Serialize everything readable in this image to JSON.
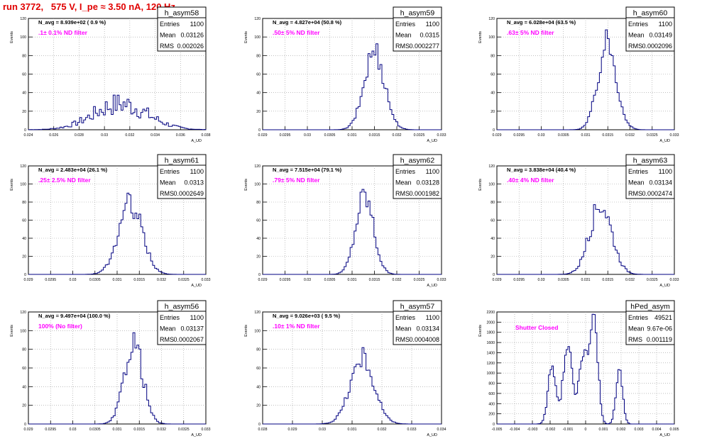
{
  "page": {
    "title": "run 3772,   575 V, I_pe ≈ 3.50 nA, 120 Hz"
  },
  "style": {
    "hist_color": "#000080",
    "note_color": "#ff00ff",
    "title_color": "#e00000"
  },
  "chart_data": [
    {
      "type": "histogram",
      "name": "h_asym58",
      "navg": "N_avg = 8.939e+02 ( 0.9 %)",
      "note": ".1± 0.1% ND filter",
      "stats": {
        "Entries": "1100",
        "Mean": "0.03126",
        "RMS": "0.002026"
      },
      "ylabel": "Events",
      "xlabel": "A_UD",
      "xlim": [
        0.024,
        0.038
      ],
      "ylim": [
        0,
        120
      ],
      "xticks": [
        "0.024",
        "0.026",
        "0.028",
        "0.03",
        "0.032",
        "0.034",
        "0.036",
        "0.038"
      ],
      "yticks": [
        "0",
        "20",
        "40",
        "60",
        "80",
        "100",
        "120"
      ],
      "mean": 0.03126,
      "rms": 0.002026,
      "peak": 37,
      "shape": "broad"
    },
    {
      "type": "histogram",
      "name": "h_asym59",
      "navg": "N_avg = 4.827e+04 (50.8 %)",
      "note": ".50± 5% ND filter",
      "stats": {
        "Entries": "1100",
        "Mean": "0.0315",
        "RMS": "0.0002277"
      },
      "ylabel": "Events",
      "xlabel": "A_UD",
      "xlim": [
        0.029,
        0.033
      ],
      "ylim": [
        0,
        120
      ],
      "xticks": [
        "0.029",
        "0.0295",
        "0.03",
        "0.0305",
        "0.031",
        "0.0315",
        "0.032",
        "0.0325",
        "0.033"
      ],
      "yticks": [
        "0",
        "20",
        "40",
        "60",
        "80",
        "100",
        "120"
      ],
      "mean": 0.0315,
      "rms": 0.0002277,
      "peak": 85,
      "shape": "gauss"
    },
    {
      "type": "histogram",
      "name": "h_asym60",
      "navg": "N_avg = 6.028e+04 (63.5 %)",
      "note": ".63± 5% ND filter",
      "stats": {
        "Entries": "1100",
        "Mean": "0.03149",
        "RMS": "0.0002096"
      },
      "ylabel": "Events",
      "xlabel": "A_UD",
      "xlim": [
        0.029,
        0.033
      ],
      "ylim": [
        0,
        120
      ],
      "xticks": [
        "0.029",
        "0.0295",
        "0.03",
        "0.0305",
        "0.031",
        "0.0315",
        "0.032",
        "0.0325",
        "0.033"
      ],
      "yticks": [
        "0",
        "20",
        "40",
        "60",
        "80",
        "100",
        "120"
      ],
      "mean": 0.03149,
      "rms": 0.0002096,
      "peak": 93,
      "shape": "gauss"
    },
    {
      "type": "histogram",
      "name": "h_asym61",
      "navg": "N_avg = 2.483e+04 (26.1 %)",
      "note": ".25± 2.5% ND filter",
      "stats": {
        "Entries": "1100",
        "Mean": "0.0313",
        "RMS": "0.0002649"
      },
      "ylabel": "Events",
      "xlabel": "A_UD",
      "xlim": [
        0.029,
        0.033
      ],
      "ylim": [
        0,
        120
      ],
      "xticks": [
        "0.029",
        "0.0295",
        "0.03",
        "0.0305",
        "0.031",
        "0.0315",
        "0.032",
        "0.0325",
        "0.033"
      ],
      "yticks": [
        "0",
        "20",
        "40",
        "60",
        "80",
        "100",
        "120"
      ],
      "mean": 0.0313,
      "rms": 0.0002649,
      "peak": 78,
      "shape": "gauss"
    },
    {
      "type": "histogram",
      "name": "h_asym62",
      "navg": "N_avg = 7.515e+04 (79.1 %)",
      "note": ".79± 5% ND filter",
      "stats": {
        "Entries": "1100",
        "Mean": "0.03128",
        "RMS": "0.0001982"
      },
      "ylabel": "Events",
      "xlabel": "A_UD",
      "xlim": [
        0.029,
        0.033
      ],
      "ylim": [
        0,
        120
      ],
      "xticks": [
        "0.029",
        "0.0295",
        "0.03",
        "0.0305",
        "0.031",
        "0.0315",
        "0.032",
        "0.0325",
        "0.033"
      ],
      "yticks": [
        "0",
        "20",
        "40",
        "60",
        "80",
        "100",
        "120"
      ],
      "mean": 0.03128,
      "rms": 0.0001982,
      "peak": 88,
      "shape": "gauss"
    },
    {
      "type": "histogram",
      "name": "h_asym63",
      "navg": "N_avg = 3.838e+04 (40.4 %)",
      "note": ".40± 4% ND filter",
      "stats": {
        "Entries": "1100",
        "Mean": "0.03134",
        "RMS": "0.0002474"
      },
      "ylabel": "Events",
      "xlabel": "A_UD",
      "xlim": [
        0.029,
        0.033
      ],
      "ylim": [
        0,
        120
      ],
      "xticks": [
        "0.029",
        "0.0295",
        "0.03",
        "0.0305",
        "0.031",
        "0.0315",
        "0.032",
        "0.0325",
        "0.033"
      ],
      "yticks": [
        "0",
        "20",
        "40",
        "60",
        "80",
        "100",
        "120"
      ],
      "mean": 0.03134,
      "rms": 0.0002474,
      "peak": 78,
      "shape": "gauss"
    },
    {
      "type": "histogram",
      "name": "h_asym56",
      "navg": "N_avg = 9.497e+04 (100.0 %)",
      "note": "100% (No filter)",
      "stats": {
        "Entries": "1100",
        "Mean": "0.03137",
        "RMS": "0.0002067"
      },
      "ylabel": "Events",
      "xlabel": "A_UD",
      "xlim": [
        0.029,
        0.033
      ],
      "ylim": [
        0,
        120
      ],
      "xticks": [
        "0.029",
        "0.0295",
        "0.03",
        "0.0305",
        "0.031",
        "0.0315",
        "0.032",
        "0.0325",
        "0.033"
      ],
      "yticks": [
        "0",
        "20",
        "40",
        "60",
        "80",
        "100",
        "120"
      ],
      "mean": 0.03137,
      "rms": 0.0002067,
      "peak": 88,
      "shape": "gauss"
    },
    {
      "type": "histogram",
      "name": "h_asym57",
      "navg": "N_avg = 9.026e+03 ( 9.5 %)",
      "note": ".10± 1% ND filter",
      "stats": {
        "Entries": "1100",
        "Mean": "0.03134",
        "RMS": "0.0004008"
      },
      "ylabel": "Events",
      "xlabel": "A_UD",
      "xlim": [
        0.028,
        0.034
      ],
      "ylim": [
        0,
        120
      ],
      "xticks": [
        "0.028",
        "0.029",
        "0.03",
        "0.031",
        "0.032",
        "0.033",
        "0.034"
      ],
      "yticks": [
        "0",
        "20",
        "40",
        "60",
        "80",
        "100",
        "120"
      ],
      "mean": 0.03134,
      "rms": 0.0004008,
      "peak": 70,
      "shape": "gauss"
    },
    {
      "type": "histogram",
      "name": "hPed_asym",
      "navg": "",
      "note": "Shutter Closed",
      "stats": {
        "Entries": "49521",
        "Mean": "9.67e-06",
        "RMS": "0.001119"
      },
      "ylabel": "Events",
      "xlabel": "A_UD",
      "xlim": [
        -0.005,
        0.005
      ],
      "ylim": [
        0,
        2200
      ],
      "xticks": [
        "-0.005",
        "-0.004",
        "-0.003",
        "-0.002",
        "-0.001",
        "0",
        "0.001",
        "0.002",
        "0.003",
        "0.004",
        "0.005"
      ],
      "yticks": [
        "0",
        "200",
        "400",
        "600",
        "800",
        "1000",
        "1200",
        "1400",
        "1600",
        "1800",
        "2000",
        "2200"
      ],
      "mean": 9.67e-06,
      "rms": 0.001119,
      "peak": 2100,
      "shape": "multi"
    }
  ]
}
